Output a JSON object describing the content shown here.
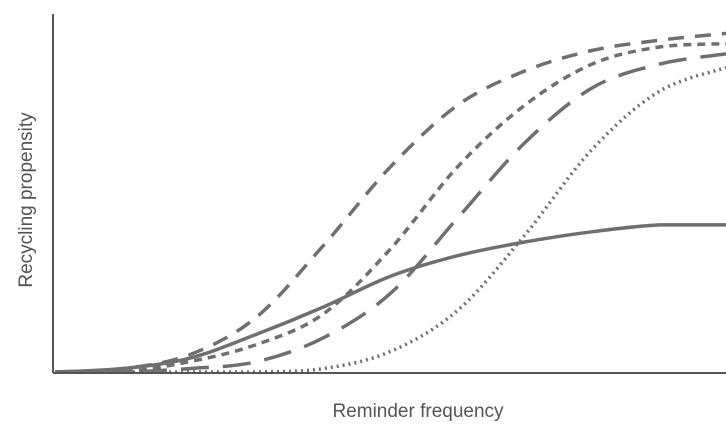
{
  "chart_data": {
    "type": "line",
    "title": "",
    "xlabel": "Reminder frequency",
    "ylabel": "Recycling propensity",
    "xlim": [
      0,
      100
    ],
    "ylim": [
      0,
      100
    ],
    "grid": false,
    "legend": "none",
    "x_ticks": false,
    "y_ticks": false,
    "series": [
      {
        "style": "solid",
        "color": "#6f6f6f",
        "x": [
          0,
          10,
          20,
          30,
          40,
          50,
          60,
          70,
          80,
          90,
          100
        ],
        "y": [
          0,
          1,
          4,
          11,
          19,
          28,
          34,
          38,
          41,
          43,
          43
        ]
      },
      {
        "style": "dashed",
        "color": "#6f6f6f",
        "x": [
          0,
          10,
          20,
          30,
          40,
          50,
          60,
          70,
          80,
          90,
          100
        ],
        "y": [
          0,
          1,
          5,
          16,
          37,
          60,
          78,
          88,
          94,
          97,
          99
        ]
      },
      {
        "style": "short-dashed",
        "color": "#6f6f6f",
        "x": [
          0,
          10,
          20,
          30,
          40,
          50,
          60,
          70,
          80,
          90,
          100
        ],
        "y": [
          0,
          0,
          3,
          8,
          17,
          36,
          60,
          78,
          90,
          95,
          96
        ]
      },
      {
        "style": "long-dashed",
        "color": "#6f6f6f",
        "x": [
          0,
          10,
          20,
          30,
          40,
          50,
          60,
          70,
          80,
          90,
          100
        ],
        "y": [
          0,
          0,
          1,
          3,
          10,
          23,
          45,
          67,
          83,
          90,
          93
        ]
      },
      {
        "style": "dotted",
        "color": "#6f6f6f",
        "x": [
          0,
          10,
          20,
          30,
          40,
          50,
          60,
          70,
          80,
          90,
          100
        ],
        "y": [
          0,
          0,
          0,
          0,
          1,
          6,
          18,
          40,
          65,
          82,
          89
        ]
      }
    ]
  }
}
